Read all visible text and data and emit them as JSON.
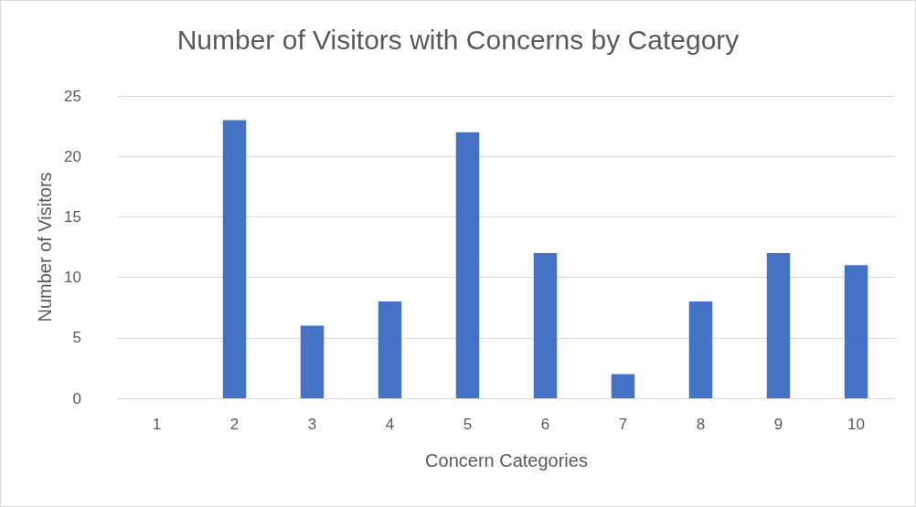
{
  "chart_data": {
    "type": "bar",
    "title": "Number of Visitors with Concerns by Category",
    "xlabel": "Concern Categories",
    "ylabel": "Number of Visitors",
    "categories": [
      "1",
      "2",
      "3",
      "4",
      "5",
      "6",
      "7",
      "8",
      "9",
      "10"
    ],
    "values": [
      0,
      23,
      6,
      8,
      22,
      12,
      2,
      8,
      12,
      11
    ],
    "color": "#4472c4",
    "ylim": [
      0,
      25
    ],
    "yticks": [
      0,
      5,
      10,
      15,
      20,
      25
    ],
    "grid": "y"
  }
}
